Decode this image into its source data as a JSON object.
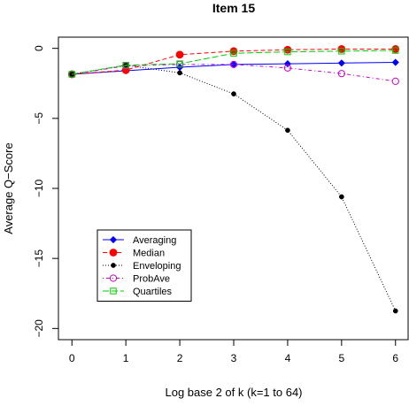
{
  "chart_data": {
    "type": "line",
    "title": "Item 15",
    "xlabel": "Log base 2 of k (k=1 to 64)",
    "ylabel": "Average Q−Score",
    "x": [
      0,
      1,
      2,
      3,
      4,
      5,
      6
    ],
    "xticks": [
      "0",
      "1",
      "2",
      "3",
      "4",
      "5",
      "6"
    ],
    "yticks": [
      "0",
      "−5",
      "−10",
      "−15",
      "−20"
    ],
    "ytick_values": [
      0,
      -5,
      -10,
      -15,
      -20
    ],
    "xlim": [
      -0.25,
      6.25
    ],
    "ylim": [
      -20.8,
      0.8
    ],
    "grid": false,
    "legend_position": "bottom-left",
    "series": [
      {
        "name": "Averaging",
        "values": [
          -1.85,
          -1.6,
          -1.35,
          -1.15,
          -1.1,
          -1.05,
          -1.0
        ],
        "color": "#0000ff",
        "line": "solid",
        "marker": "filled-diamond"
      },
      {
        "name": "Median",
        "values": [
          -1.85,
          -1.55,
          -0.45,
          -0.2,
          -0.1,
          -0.05,
          -0.05
        ],
        "color": "#ff0000",
        "line": "dashed",
        "marker": "filled-circle"
      },
      {
        "name": "Enveloping",
        "values": [
          -1.85,
          -1.2,
          -1.75,
          -3.25,
          -5.85,
          -10.6,
          -18.75
        ],
        "color": "#000000",
        "line": "dotted",
        "marker": "small-filled-circle"
      },
      {
        "name": "ProbAve",
        "values": [
          -1.85,
          -1.25,
          -1.15,
          -1.15,
          -1.4,
          -1.8,
          -2.35
        ],
        "color": "#cc00cc",
        "line": "dotdash",
        "marker": "open-circle"
      },
      {
        "name": "Quartiles",
        "values": [
          -1.85,
          -1.2,
          -1.1,
          -0.35,
          -0.25,
          -0.2,
          -0.15
        ],
        "color": "#00cc00",
        "line": "longdash",
        "marker": "open-square"
      }
    ]
  }
}
